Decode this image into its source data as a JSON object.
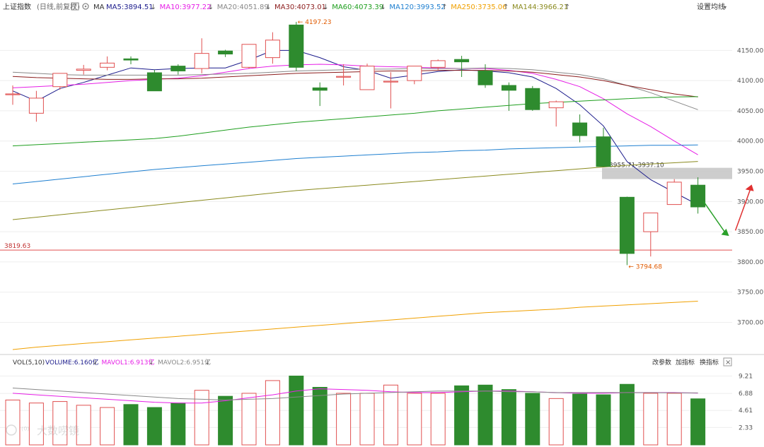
{
  "header": {
    "index_name": "上证指数",
    "mode": "(日线,前复权)",
    "ma_label": "MA",
    "ma_items": [
      {
        "text": "MA5:3894.51",
        "arrow": "↓",
        "color": "#1c1c8c"
      },
      {
        "text": "MA10:3977.22",
        "arrow": "↓",
        "color": "#e61ee6"
      },
      {
        "text": "MA20:4051.89",
        "arrow": "↓",
        "color": "#888888"
      },
      {
        "text": "MA30:4073.01",
        "arrow": "↓",
        "color": "#8b1c1c"
      },
      {
        "text": "MA60:4073.39",
        "arrow": "↓",
        "color": "#1e9e1e"
      },
      {
        "text": "MA120:3993.52",
        "arrow": "↑",
        "color": "#1e7fd0"
      },
      {
        "text": "MA250:3735.06",
        "arrow": "↑",
        "color": "#f0a000"
      },
      {
        "text": "MA144:3966.21",
        "arrow": "↑",
        "color": "#8a8a1e"
      }
    ],
    "settings_label": "设置均线"
  },
  "vol_header": {
    "label": "VOL(5,10)",
    "items": [
      {
        "text": "VOLUME:6.160亿",
        "arrow": "↓",
        "color": "#1c1c8c"
      },
      {
        "text": "MAVOL1:6.913亿",
        "arrow": "↓",
        "color": "#e61ee6"
      },
      {
        "text": "MAVOL2:6.951亿",
        "arrow": "↓",
        "color": "#888888"
      }
    ],
    "buttons": [
      "改参数",
      "加指标",
      "换指标"
    ],
    "close": "×"
  },
  "watermark": "大数唠镜",
  "colors": {
    "up": "#e05050",
    "down": "#2e8b2e",
    "grid": "#eeeeee",
    "support": "#e05050"
  },
  "chart_data": {
    "type": "candlestick",
    "ylim": [
      3655,
      4210
    ],
    "price_ticks": [
      4150,
      4100,
      4050,
      4000,
      3950,
      3900,
      3850,
      3800,
      3750,
      3700
    ],
    "price_tick_labels": [
      "4150.00",
      "4100.00",
      "4050.00",
      "4000.00",
      "3950.00",
      "3900.00",
      "3850.00",
      "3800.00",
      "3750.00",
      "3700.00"
    ],
    "candles": [
      {
        "o": 4078,
        "c": 4078,
        "h": 4092,
        "l": 4060
      },
      {
        "o": 4046,
        "c": 4071,
        "h": 4083,
        "l": 4032
      },
      {
        "o": 4090,
        "c": 4112,
        "h": 4112,
        "l": 4085
      },
      {
        "o": 4117,
        "c": 4119,
        "h": 4126,
        "l": 4110
      },
      {
        "o": 4122,
        "c": 4129,
        "h": 4140,
        "l": 4117
      },
      {
        "o": 4136,
        "c": 4134,
        "h": 4140,
        "l": 4127
      },
      {
        "o": 4113,
        "c": 4083,
        "h": 4118,
        "l": 4083
      },
      {
        "o": 4124,
        "c": 4116,
        "h": 4127,
        "l": 4110
      },
      {
        "o": 4120,
        "c": 4145,
        "h": 4170,
        "l": 4112
      },
      {
        "o": 4149,
        "c": 4144,
        "h": 4151,
        "l": 4139
      },
      {
        "o": 4122,
        "c": 4160,
        "h": 4160,
        "l": 4120
      },
      {
        "o": 4138,
        "c": 4167,
        "h": 4180,
        "l": 4128
      },
      {
        "o": 4192,
        "c": 4122,
        "h": 4197.23,
        "l": 4116
      },
      {
        "o": 4088,
        "c": 4084,
        "h": 4097,
        "l": 4058
      },
      {
        "o": 4107,
        "c": 4107,
        "h": 4127,
        "l": 4092
      },
      {
        "o": 4085,
        "c": 4124,
        "h": 4128,
        "l": 4085
      },
      {
        "o": 4099,
        "c": 4099,
        "h": 4114,
        "l": 4054
      },
      {
        "o": 4100,
        "c": 4124,
        "h": 4124,
        "l": 4094
      },
      {
        "o": 4122,
        "c": 4133,
        "h": 4135,
        "l": 4118
      },
      {
        "o": 4135,
        "c": 4131,
        "h": 4141,
        "l": 4106
      },
      {
        "o": 4116,
        "c": 4093,
        "h": 4127,
        "l": 4088
      },
      {
        "o": 4092,
        "c": 4084,
        "h": 4097,
        "l": 4050
      },
      {
        "o": 4087,
        "c": 4052,
        "h": 4091,
        "l": 4050
      },
      {
        "o": 4055,
        "c": 4065,
        "h": 4067,
        "l": 4024
      },
      {
        "o": 4030,
        "c": 4009,
        "h": 4044,
        "l": 3998
      },
      {
        "o": 4007,
        "c": 3958,
        "h": 4022,
        "l": 3958
      },
      {
        "o": 3907,
        "c": 3814,
        "h": 3908,
        "l": 3794.68
      },
      {
        "o": 3850,
        "c": 3881,
        "h": 3881,
        "l": 3809
      },
      {
        "o": 3895,
        "c": 3932,
        "h": 3937,
        "l": 3895
      },
      {
        "o": 3927,
        "c": 3891,
        "h": 3940,
        "l": 3880
      }
    ],
    "ma_series": [
      {
        "name": "MA5",
        "color": "#1c1c8c",
        "values": [
          4083,
          4066,
          4087,
          4097,
          4109,
          4121,
          4118,
          4120,
          4121,
          4121,
          4134,
          4150,
          4150,
          4138,
          4123,
          4117,
          4104,
          4109,
          4115,
          4118,
          4116,
          4113,
          4106,
          4087,
          4060,
          4025,
          3966,
          3936,
          3915,
          3894.51
        ]
      },
      {
        "name": "MA10",
        "color": "#e61ee6",
        "values": [
          4088,
          4090,
          4092,
          4094,
          4097,
          4100,
          4102,
          4104,
          4108,
          4114,
          4120,
          4124,
          4126,
          4127,
          4126,
          4124,
          4123,
          4122,
          4121,
          4120,
          4120,
          4117,
          4112,
          4102,
          4090,
          4070,
          4045,
          4024,
          4000,
          3977.22
        ]
      },
      {
        "name": "MA20",
        "color": "#888888",
        "values": [
          4114,
          4112,
          4110,
          4109,
          4109,
          4109,
          4109,
          4109,
          4110,
          4111,
          4112,
          4114,
          4116,
          4117,
          4118,
          4119,
          4119,
          4120,
          4120,
          4120,
          4121,
          4120,
          4118,
          4114,
          4110,
          4103,
          4092,
          4080,
          4066,
          4051.89
        ]
      },
      {
        "name": "MA30",
        "color": "#8b1c1c",
        "values": [
          4107,
          4105,
          4104,
          4103,
          4102,
          4102,
          4103,
          4103,
          4104,
          4106,
          4108,
          4110,
          4112,
          4113,
          4114,
          4115,
          4116,
          4116,
          4117,
          4117,
          4117,
          4116,
          4114,
          4110,
          4106,
          4100,
          4092,
          4085,
          4078,
          4073.01
        ]
      },
      {
        "name": "MA60",
        "color": "#1e9e1e",
        "values": [
          3992,
          3994,
          3996,
          3998,
          4000,
          4002,
          4004,
          4008,
          4013,
          4018,
          4023,
          4027,
          4031,
          4034,
          4037,
          4040,
          4043,
          4046,
          4050,
          4053,
          4056,
          4059,
          4062,
          4064,
          4066,
          4068,
          4070,
          4072,
          4073,
          4073.39
        ]
      },
      {
        "name": "MA120",
        "color": "#1e7fd0",
        "values": [
          3929,
          3933,
          3937,
          3941,
          3945,
          3949,
          3953,
          3956,
          3959,
          3962,
          3965,
          3968,
          3971,
          3973,
          3975,
          3977,
          3979,
          3981,
          3982,
          3984,
          3985,
          3987,
          3988,
          3989,
          3990,
          3991,
          3992,
          3993,
          3993,
          3993.52
        ]
      },
      {
        "name": "MA144",
        "color": "#8a8a1e",
        "values": [
          3870,
          3874,
          3878,
          3882,
          3886,
          3890,
          3894,
          3898,
          3902,
          3906,
          3910,
          3914,
          3918,
          3921,
          3924,
          3927,
          3930,
          3933,
          3936,
          3939,
          3942,
          3945,
          3948,
          3951,
          3954,
          3957,
          3960,
          3962,
          3964,
          3966.21
        ]
      },
      {
        "name": "MA250",
        "color": "#f0a000",
        "values": [
          3655,
          3659,
          3662,
          3665,
          3668,
          3671,
          3674,
          3677,
          3680,
          3683,
          3686,
          3689,
          3692,
          3695,
          3698,
          3701,
          3704,
          3707,
          3710,
          3713,
          3716,
          3718,
          3720,
          3722,
          3725,
          3727,
          3729,
          3731,
          3733,
          3735.06
        ]
      }
    ],
    "annotations": [
      {
        "label": "4197.23",
        "candle": 12,
        "price": 4197.23,
        "color": "#e05a00"
      },
      {
        "label": "3794.68",
        "candle": 26,
        "price": 3794.68,
        "color": "#e05a00"
      }
    ],
    "gap_zone": {
      "label": "3955.71-3937.10",
      "high": 3955.71,
      "low": 3937.1
    },
    "support_line": {
      "label": "3819.63",
      "price": 3819.63
    },
    "volume": {
      "ylim": [
        0,
        10.2
      ],
      "ticks": [
        9.21,
        6.88,
        4.61,
        2.33
      ],
      "tick_labels": [
        "9.21",
        "6.88",
        "4.61",
        "2.33"
      ],
      "values": [
        6.0,
        5.6,
        5.8,
        5.3,
        5.0,
        5.4,
        5.0,
        5.6,
        7.3,
        6.5,
        6.9,
        8.6,
        9.21,
        7.7,
        6.9,
        6.9,
        8.0,
        6.9,
        6.9,
        7.9,
        8.0,
        7.4,
        6.9,
        6.2,
        6.8,
        6.7,
        8.1,
        6.9,
        6.9,
        6.16
      ],
      "mavol1": [
        6.9,
        6.7,
        6.5,
        6.3,
        6.1,
        5.9,
        5.7,
        5.6,
        5.6,
        5.9,
        6.3,
        6.7,
        7.2,
        7.5,
        7.4,
        7.3,
        7.1,
        7.0,
        7.0,
        7.1,
        7.2,
        7.2,
        7.1,
        7.0,
        6.9,
        6.9,
        7.0,
        7.0,
        7.0,
        6.913
      ],
      "mavol2": [
        7.6,
        7.4,
        7.2,
        7.0,
        6.8,
        6.6,
        6.4,
        6.2,
        6.1,
        6.0,
        6.1,
        6.2,
        6.4,
        6.6,
        6.8,
        6.9,
        7.0,
        7.1,
        7.2,
        7.2,
        7.2,
        7.1,
        7.1,
        7.0,
        7.0,
        7.0,
        7.0,
        6.99,
        6.97,
        6.951
      ]
    }
  }
}
